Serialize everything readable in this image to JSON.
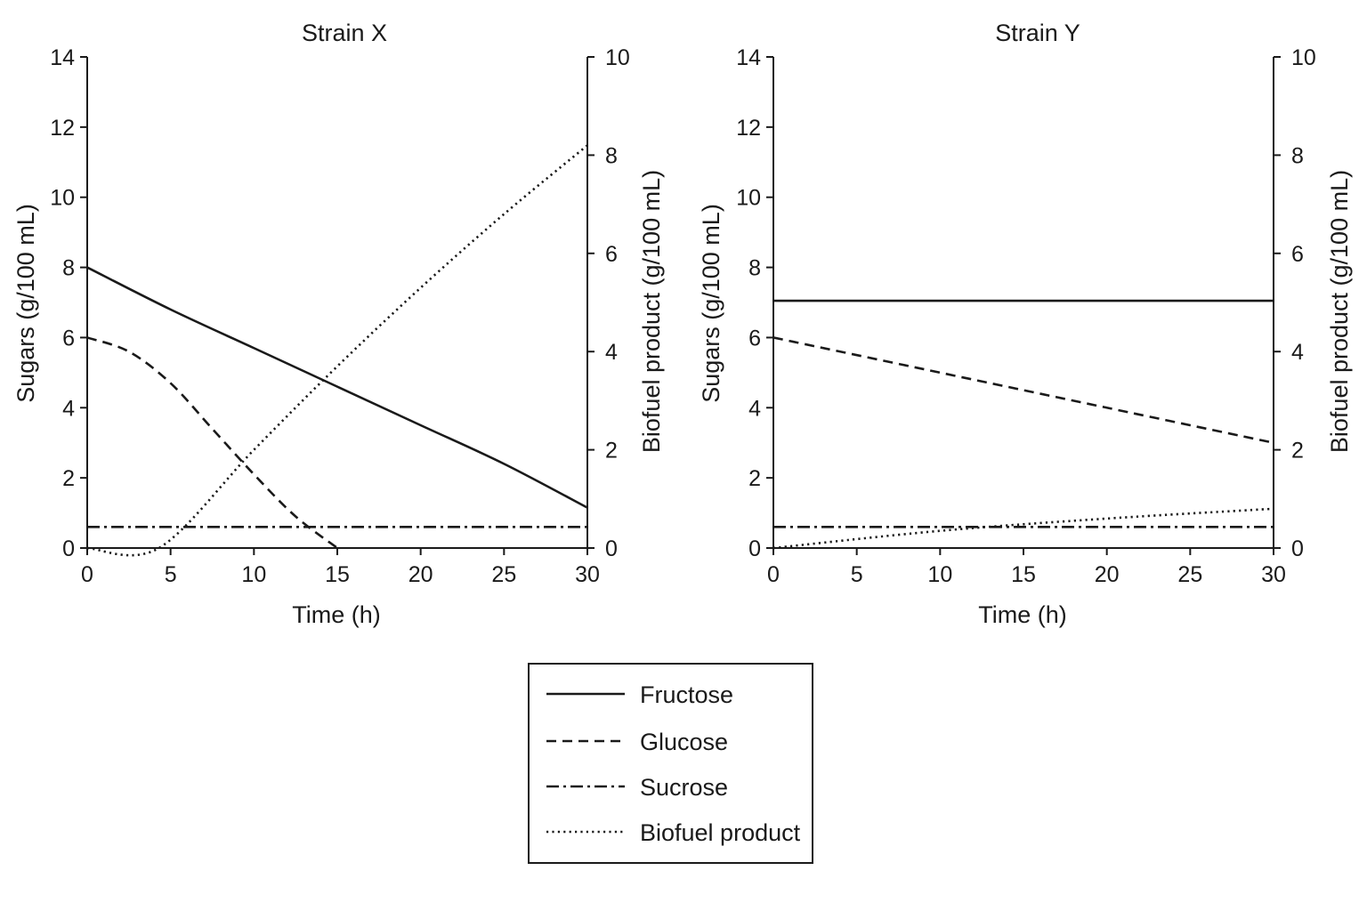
{
  "chart_data": [
    {
      "type": "line",
      "title": "Strain X",
      "xlabel": "Time (h)",
      "ylabel": "Sugars (g/100 mL)",
      "y2label": "Biofuel product (g/100 mL)",
      "xlim": [
        0,
        30
      ],
      "ylim": [
        0,
        14
      ],
      "y2lim": [
        0,
        10
      ],
      "xticks": [
        "0",
        "5",
        "10",
        "15",
        "20",
        "25",
        "30"
      ],
      "yticks": [
        "0",
        "2",
        "4",
        "6",
        "8",
        "10",
        "12",
        "14"
      ],
      "y2ticks": [
        "0",
        "2",
        "4",
        "6",
        "8",
        "10"
      ],
      "grid": false,
      "series": [
        {
          "name": "Fructose",
          "axis": "left",
          "style": "solid",
          "x": [
            0,
            5,
            10,
            15,
            20,
            25,
            30
          ],
          "y": [
            8.0,
            6.8,
            5.7,
            4.6,
            3.5,
            2.4,
            1.15
          ]
        },
        {
          "name": "Glucose",
          "axis": "left",
          "style": "dashed",
          "x": [
            0,
            2.5,
            5,
            7.5,
            10,
            12.5,
            15
          ],
          "y": [
            6.0,
            5.6,
            4.7,
            3.4,
            2.1,
            0.9,
            0.0
          ]
        },
        {
          "name": "Sucrose",
          "axis": "left",
          "style": "dashdot",
          "x": [
            0,
            30
          ],
          "y": [
            0.6,
            0.6
          ]
        },
        {
          "name": "Biofuel product",
          "axis": "right",
          "style": "dotted",
          "x": [
            0,
            4.3,
            10,
            15,
            20,
            25,
            30
          ],
          "y": [
            0.0,
            0.0,
            2.0,
            3.7,
            5.3,
            6.8,
            8.2
          ]
        }
      ]
    },
    {
      "type": "line",
      "title": "Strain Y",
      "xlabel": "Time (h)",
      "ylabel": "Sugars (g/100 mL)",
      "y2label": "Biofuel product (g/100 mL)",
      "xlim": [
        0,
        30
      ],
      "ylim": [
        0,
        14
      ],
      "y2lim": [
        0,
        10
      ],
      "xticks": [
        "0",
        "5",
        "10",
        "15",
        "20",
        "25",
        "30"
      ],
      "yticks": [
        "0",
        "2",
        "4",
        "6",
        "8",
        "10",
        "12",
        "14"
      ],
      "y2ticks": [
        "0",
        "2",
        "4",
        "6",
        "8",
        "10"
      ],
      "grid": false,
      "series": [
        {
          "name": "Fructose",
          "axis": "left",
          "style": "solid",
          "x": [
            0,
            30
          ],
          "y": [
            7.05,
            7.05
          ]
        },
        {
          "name": "Glucose",
          "axis": "left",
          "style": "dashed",
          "x": [
            0,
            10,
            20,
            30
          ],
          "y": [
            6.0,
            5.0,
            4.0,
            3.0
          ]
        },
        {
          "name": "Sucrose",
          "axis": "left",
          "style": "dashdot",
          "x": [
            0,
            30
          ],
          "y": [
            0.6,
            0.6
          ]
        },
        {
          "name": "Biofuel product",
          "axis": "right",
          "style": "dotted",
          "x": [
            0,
            10,
            20,
            30
          ],
          "y": [
            0.0,
            0.35,
            0.6,
            0.8
          ]
        }
      ]
    }
  ],
  "legend": {
    "placement": "bottom-center",
    "items": [
      {
        "label": "Fructose",
        "style": "solid"
      },
      {
        "label": "Glucose",
        "style": "dashed"
      },
      {
        "label": "Sucrose",
        "style": "dashdot"
      },
      {
        "label": "Biofuel product",
        "style": "dotted"
      }
    ]
  },
  "colors": {
    "ink": "#1a1a1a",
    "background": "#ffffff"
  }
}
